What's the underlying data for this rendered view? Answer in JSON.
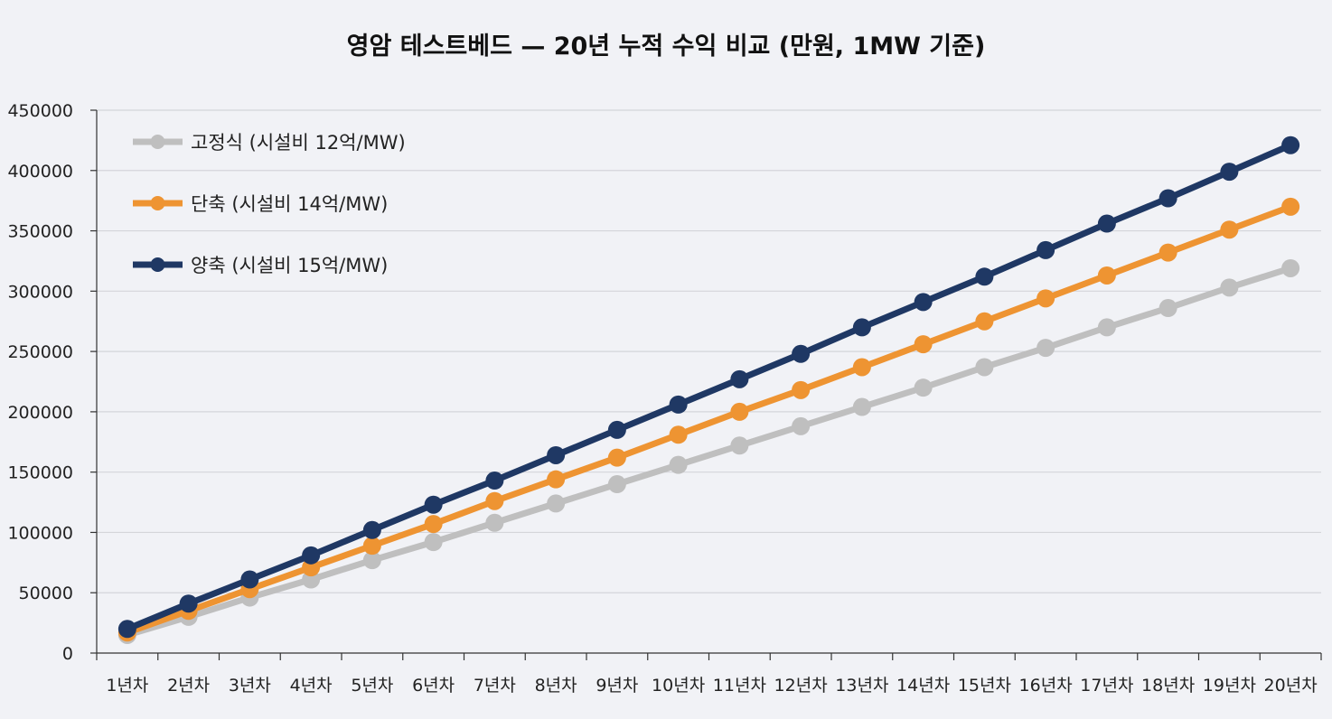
{
  "chart_data": {
    "type": "line",
    "title": "영암 테스트베드 — 20년 누적 수익 비교 (만원, 1MW 기준)",
    "xlabel": "",
    "ylabel": "",
    "ylim": [
      0,
      450000
    ],
    "yticks": [
      0,
      50000,
      100000,
      150000,
      200000,
      250000,
      300000,
      350000,
      400000,
      450000
    ],
    "ytick_labels": [
      "0",
      "50000",
      "100000",
      "150000",
      "200000",
      "250000",
      "300000",
      "350000",
      "400000",
      "450000"
    ],
    "grid": true,
    "legend_position": "top-left",
    "categories": [
      "1년차",
      "2년차",
      "3년차",
      "4년차",
      "5년차",
      "6년차",
      "7년차",
      "8년차",
      "9년차",
      "10년차",
      "11년차",
      "12년차",
      "13년차",
      "14년차",
      "15년차",
      "16년차",
      "17년차",
      "18년차",
      "19년차",
      "20년차"
    ],
    "series": [
      {
        "name": "고정식 (시설비 12억/MW)",
        "color": "#bfbfbf",
        "values": [
          15000,
          30000,
          46000,
          61000,
          77000,
          92000,
          108000,
          124000,
          140000,
          156000,
          172000,
          188000,
          204000,
          220000,
          237000,
          253000,
          270000,
          286000,
          303000,
          319000
        ]
      },
      {
        "name": "단축 (시설비 14억/MW)",
        "color": "#ee9432",
        "values": [
          17000,
          35000,
          53000,
          71000,
          89000,
          107000,
          126000,
          144000,
          162000,
          181000,
          200000,
          218000,
          237000,
          256000,
          275000,
          294000,
          313000,
          332000,
          351000,
          370000
        ]
      },
      {
        "name": "양축 (시설비 15억/MW)",
        "color": "#1f3864",
        "values": [
          20000,
          41000,
          61000,
          81000,
          102000,
          123000,
          143000,
          164000,
          185000,
          206000,
          227000,
          248000,
          270000,
          291000,
          312000,
          334000,
          356000,
          377000,
          399000,
          421000
        ]
      }
    ]
  }
}
